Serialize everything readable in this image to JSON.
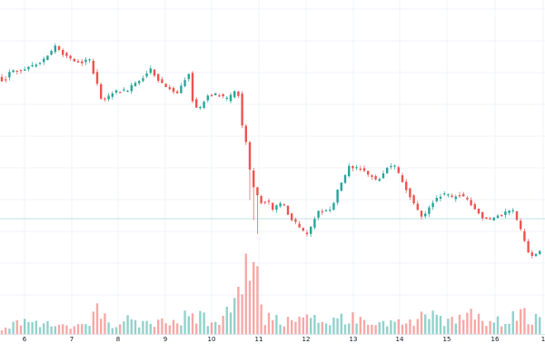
{
  "chart_data": {
    "type": "candlestick",
    "title": "",
    "xlabel": "",
    "ylabel": "",
    "grid": true,
    "x_tick_labels": [
      "6",
      "7",
      "8",
      "9",
      "10",
      "11",
      "12",
      "13",
      "14",
      "15",
      "16",
      "1"
    ],
    "up_color": "#26a69a",
    "down_color": "#ef5350",
    "horizontal_line_color": "#a8dadc",
    "price_keypoints": [
      [
        0,
        86
      ],
      [
        6,
        90
      ],
      [
        12,
        80
      ],
      [
        20,
        78
      ],
      [
        30,
        75
      ],
      [
        40,
        72
      ],
      [
        50,
        66
      ],
      [
        58,
        58
      ],
      [
        64,
        50
      ],
      [
        72,
        60
      ],
      [
        80,
        65
      ],
      [
        90,
        70
      ],
      [
        100,
        65
      ],
      [
        108,
        90
      ],
      [
        114,
        110
      ],
      [
        122,
        106
      ],
      [
        130,
        100
      ],
      [
        140,
        102
      ],
      [
        150,
        92
      ],
      [
        160,
        85
      ],
      [
        168,
        76
      ],
      [
        176,
        88
      ],
      [
        186,
        96
      ],
      [
        196,
        104
      ],
      [
        204,
        92
      ],
      [
        210,
        80
      ],
      [
        214,
        110
      ],
      [
        220,
        124
      ],
      [
        226,
        112
      ],
      [
        232,
        105
      ],
      [
        242,
        104
      ],
      [
        252,
        110
      ],
      [
        260,
        102
      ],
      [
        264,
        100
      ],
      [
        268,
        136
      ],
      [
        274,
        160
      ],
      [
        278,
        196
      ],
      [
        284,
        214
      ],
      [
        290,
        224
      ],
      [
        296,
        218
      ],
      [
        302,
        232
      ],
      [
        308,
        226
      ],
      [
        314,
        224
      ],
      [
        320,
        238
      ],
      [
        326,
        244
      ],
      [
        332,
        252
      ],
      [
        340,
        258
      ],
      [
        346,
        246
      ],
      [
        352,
        232
      ],
      [
        360,
        234
      ],
      [
        368,
        230
      ],
      [
        374,
        208
      ],
      [
        380,
        200
      ],
      [
        386,
        184
      ],
      [
        394,
        184
      ],
      [
        402,
        188
      ],
      [
        410,
        194
      ],
      [
        418,
        200
      ],
      [
        424,
        190
      ],
      [
        432,
        182
      ],
      [
        438,
        186
      ],
      [
        444,
        198
      ],
      [
        450,
        210
      ],
      [
        458,
        224
      ],
      [
        466,
        240
      ],
      [
        474,
        230
      ],
      [
        482,
        218
      ],
      [
        490,
        214
      ],
      [
        500,
        218
      ],
      [
        510,
        214
      ],
      [
        518,
        222
      ],
      [
        526,
        232
      ],
      [
        534,
        240
      ],
      [
        542,
        242
      ],
      [
        550,
        238
      ],
      [
        558,
        234
      ],
      [
        566,
        232
      ],
      [
        572,
        244
      ],
      [
        578,
        262
      ],
      [
        584,
        280
      ],
      [
        590,
        282
      ],
      [
        596,
        276
      ]
    ],
    "volume_keypoints": [
      [
        0,
        8
      ],
      [
        20,
        12
      ],
      [
        50,
        16
      ],
      [
        62,
        10
      ],
      [
        90,
        10
      ],
      [
        108,
        28
      ],
      [
        118,
        14
      ],
      [
        150,
        16
      ],
      [
        165,
        12
      ],
      [
        195,
        14
      ],
      [
        212,
        28
      ],
      [
        240,
        10
      ],
      [
        265,
        44
      ],
      [
        278,
        118
      ],
      [
        290,
        20
      ],
      [
        310,
        16
      ],
      [
        330,
        24
      ],
      [
        350,
        14
      ],
      [
        375,
        22
      ],
      [
        398,
        18
      ],
      [
        420,
        14
      ],
      [
        450,
        12
      ],
      [
        470,
        22
      ],
      [
        500,
        14
      ],
      [
        524,
        24
      ],
      [
        550,
        14
      ],
      [
        574,
        26
      ],
      [
        596,
        14
      ]
    ]
  }
}
